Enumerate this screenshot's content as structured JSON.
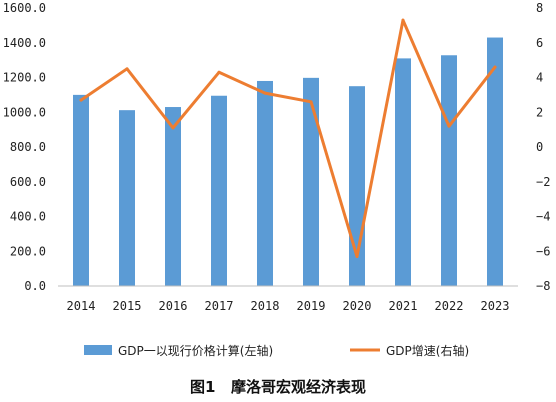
{
  "chart_data": {
    "type": "bar",
    "categories": [
      "2014",
      "2015",
      "2016",
      "2017",
      "2018",
      "2019",
      "2020",
      "2021",
      "2022",
      "2023"
    ],
    "series": [
      {
        "name": "GDP一以现行价格计算(左轴)",
        "type": "bar",
        "axis": "left",
        "color": "#5b9bd5",
        "values": [
          1100,
          1012,
          1030,
          1095,
          1180,
          1198,
          1150,
          1310,
          1328,
          1430
        ]
      },
      {
        "name": "GDP增速(右轴)",
        "type": "line",
        "axis": "right",
        "color": "#ed7d31",
        "values": [
          2.7,
          4.5,
          1.1,
          4.3,
          3.1,
          2.6,
          -6.3,
          7.3,
          1.2,
          4.6
        ]
      }
    ],
    "y_left": {
      "lim": [
        0,
        1600
      ],
      "ticks": [
        "0.0",
        "200.0",
        "400.0",
        "600.0",
        "800.0",
        "1000.0",
        "1200.0",
        "1400.0",
        "1600.0"
      ]
    },
    "y_right": {
      "lim": [
        -8,
        8
      ],
      "ticks": [
        "-8",
        "-6",
        "-4",
        "-2",
        "0",
        "2",
        "4",
        "6",
        "8"
      ]
    },
    "grid": false,
    "legend_position": "bottom"
  },
  "caption": "图1   摩洛哥宏观经济表现"
}
